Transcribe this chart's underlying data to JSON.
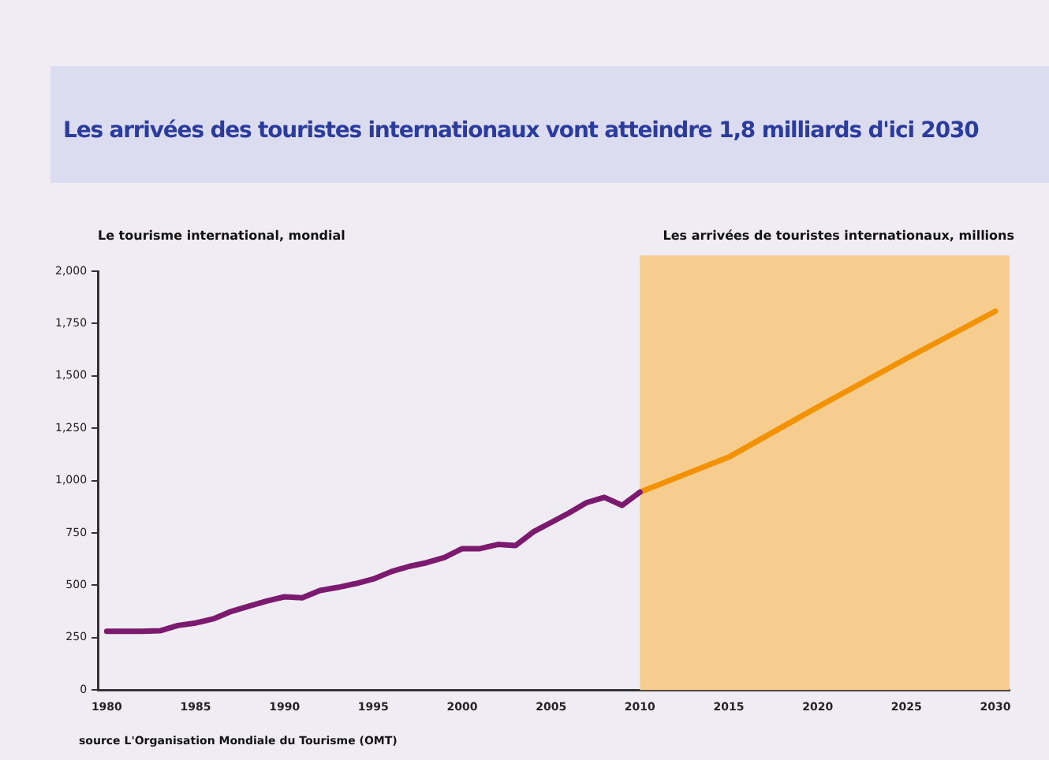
{
  "chart_data": {
    "type": "line",
    "title": "Les arrivées des touristes internationaux vont atteindre 1,8 milliards d'ici 2030",
    "subtitle": "Le tourisme international, mondial",
    "ylabel": "Les arrivées de touristes internationaux, millions",
    "annotations": [
      "source L'Organisation Mondiale du Tourisme (OMT)"
    ],
    "series": [
      {
        "color": "#7b1a6e",
        "x": [
          1980,
          1981,
          1982,
          1983,
          1984,
          1985,
          1986,
          1987,
          1988,
          1989,
          1990,
          1991,
          1992,
          1993,
          1994,
          1995,
          1996,
          1997,
          1998,
          1999,
          2000,
          2001,
          2002,
          2003,
          2004,
          2005,
          2006,
          2007,
          2008,
          2009,
          2010
        ],
        "values": [
          280,
          280,
          280,
          283,
          308,
          320,
          340,
          375,
          400,
          425,
          445,
          440,
          475,
          490,
          508,
          530,
          565,
          590,
          608,
          633,
          675,
          675,
          695,
          690,
          755,
          800,
          845,
          895,
          920,
          882,
          945
        ]
      },
      {
        "color": "#f39200",
        "x": [
          2010,
          2015,
          2020,
          2025,
          2030
        ],
        "values": [
          945,
          1112,
          1351,
          1583,
          1809
        ]
      }
    ],
    "xlim": [
      1979.5,
      2030.8
    ],
    "xticks": [
      1980,
      1985,
      1990,
      1995,
      2000,
      2005,
      2010,
      2015,
      2020,
      2025,
      2030
    ],
    "ylim": [
      0,
      2000
    ],
    "yticks": [
      0,
      {
        "value": 250,
        "label": "250"
      },
      {
        "value": 500,
        "label": "500"
      },
      {
        "value": 750,
        "label": "750"
      },
      {
        "value": 1000,
        "label": "1,000"
      },
      {
        "value": 1250,
        "label": "1,250"
      },
      {
        "value": 1500,
        "label": "1,500"
      },
      {
        "value": 1750,
        "label": "1,750"
      },
      {
        "value": 2000,
        "label": "2,000"
      }
    ],
    "bands": [
      {
        "axis": "x",
        "from": 2010,
        "to": 2030.8,
        "color": "#f7cd8f"
      }
    ],
    "grid": false,
    "legend": false,
    "marker": "none",
    "line_style": "solid"
  }
}
